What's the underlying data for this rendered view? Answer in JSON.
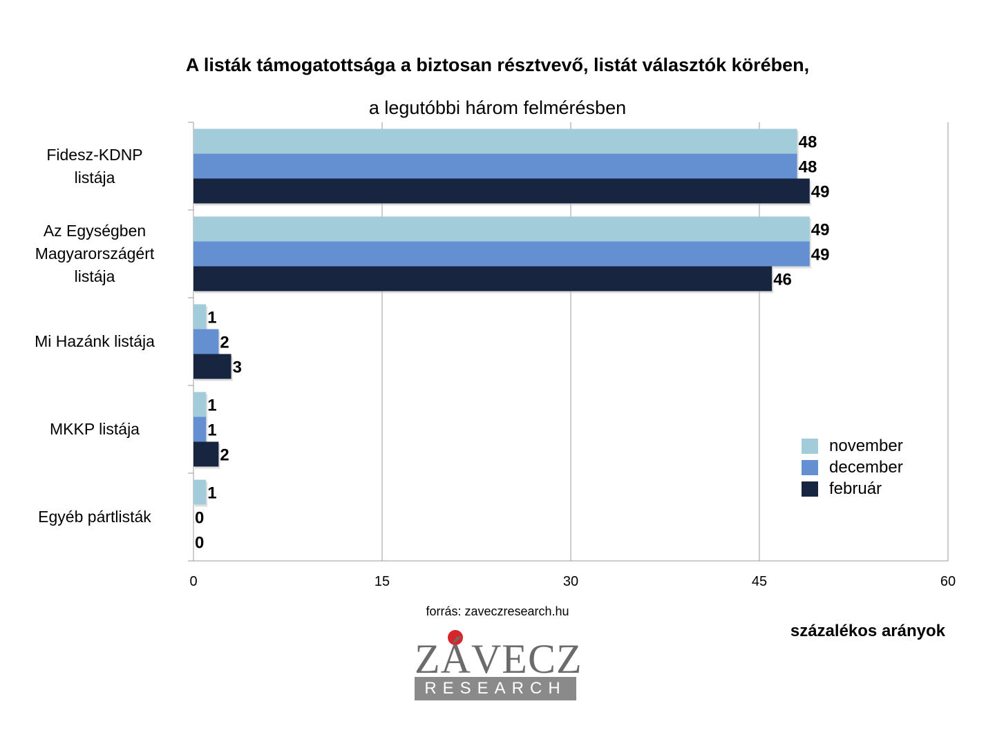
{
  "title": "A listák támogatottsága a biztosan résztvevő, listát választók körében,",
  "subtitle": "a legutóbbi három felmérésben",
  "source": "forrás: zaveczresearch.hu",
  "unit_label": "százalékos arányok",
  "logo": {
    "main": "ZÁVECZ",
    "sub": "RESEARCH"
  },
  "chart_data": {
    "type": "bar",
    "orientation": "horizontal",
    "categories": [
      [
        "Fidesz-KDNP",
        "listája"
      ],
      [
        "Az Egységben",
        "Magyarországért",
        "listája"
      ],
      [
        "Mi Hazánk listája"
      ],
      [
        "MKKP listája"
      ],
      [
        "Egyéb pártlisták"
      ]
    ],
    "series": [
      {
        "name": "november",
        "color": "#a2ccd9",
        "values": [
          48,
          49,
          1,
          1,
          1
        ]
      },
      {
        "name": "december",
        "color": "#6490d2",
        "values": [
          48,
          49,
          2,
          1,
          0
        ]
      },
      {
        "name": "február",
        "color": "#172541",
        "values": [
          49,
          46,
          3,
          2,
          0
        ]
      }
    ],
    "xlim": [
      0,
      60
    ],
    "xticks": [
      "0",
      "15",
      "30",
      "45",
      "60"
    ],
    "grid": true,
    "legend": "right",
    "data_labels": true
  }
}
